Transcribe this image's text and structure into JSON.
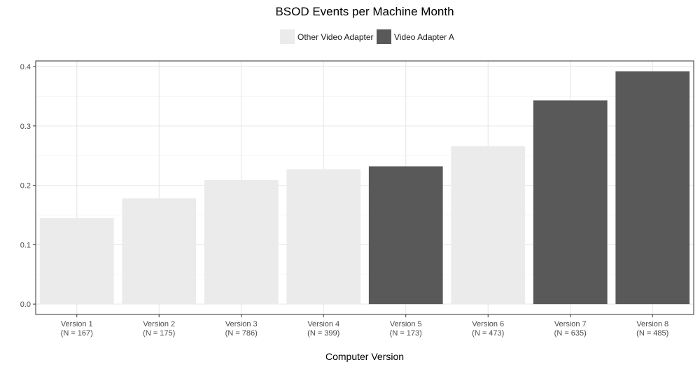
{
  "chart_data": {
    "type": "bar",
    "title": "BSOD Events per Machine Month",
    "xlabel": "Computer Version",
    "ylabel": "",
    "ylim": [
      -0.0175,
      0.4095
    ],
    "yticks": [
      "0.0",
      "0.1",
      "0.2",
      "0.3",
      "0.4"
    ],
    "ytick_values": [
      0.0,
      0.1,
      0.2,
      0.3,
      0.4
    ],
    "grid": true,
    "legend_position": "top",
    "categories": [
      {
        "name": "Version 1",
        "n_label": "(N = 167)"
      },
      {
        "name": "Version 2",
        "n_label": "(N = 175)"
      },
      {
        "name": "Version 3",
        "n_label": "(N = 786)"
      },
      {
        "name": "Version 4",
        "n_label": "(N = 399)"
      },
      {
        "name": "Version 5",
        "n_label": "(N = 173)"
      },
      {
        "name": "Version 6",
        "n_label": "(N = 473)"
      },
      {
        "name": "Version 7",
        "n_label": "(N = 635)"
      },
      {
        "name": "Version 8",
        "n_label": "(N = 485)"
      }
    ],
    "values": [
      0.145,
      0.178,
      0.209,
      0.227,
      0.232,
      0.266,
      0.343,
      0.392
    ],
    "groups": [
      "Other Video Adapter",
      "Other Video Adapter",
      "Other Video Adapter",
      "Other Video Adapter",
      "Video Adapter A",
      "Other Video Adapter",
      "Video Adapter A",
      "Video Adapter A"
    ],
    "legend": [
      {
        "label": "Other Video Adapter",
        "color": "#ebebeb"
      },
      {
        "label": "Video Adapter A",
        "color": "#595959"
      }
    ]
  }
}
